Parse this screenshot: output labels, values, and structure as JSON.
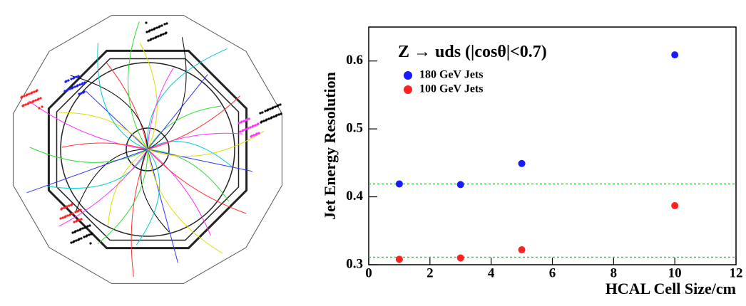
{
  "chart_data": {
    "type": "scatter",
    "annotation": "Z → uds (|cosθ|<0.7)",
    "x_label": "HCAL Cell Size/cm",
    "y_label": "Jet Energy Resolution",
    "xlim": [
      0,
      12
    ],
    "xticks": [
      0,
      2,
      4,
      6,
      8,
      10,
      12
    ],
    "ylim": [
      0.3,
      0.65
    ],
    "yticks": [
      0.3,
      0.4,
      0.5,
      0.6
    ],
    "legend": "top-left",
    "series": [
      {
        "name": "180 GeV Jets",
        "color": "#1a1aff",
        "x": [
          1,
          3,
          5,
          10
        ],
        "values": [
          0.419,
          0.418,
          0.449,
          0.609
        ]
      },
      {
        "name": "100 GeV Jets",
        "color": "#ff2020",
        "x": [
          1,
          3,
          5,
          10
        ],
        "values": [
          0.308,
          0.31,
          0.322,
          0.387
        ]
      }
    ],
    "reference_lines": {
      "color": "#22dd22",
      "values": [
        0.419,
        0.311
      ]
    }
  }
}
